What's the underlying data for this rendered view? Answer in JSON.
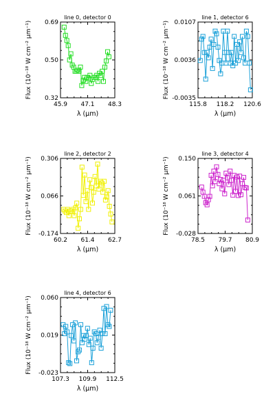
{
  "chart_data": [
    {
      "type": "line",
      "title": "line 0, detector 0",
      "xlabel": "λ (μm)",
      "ylabel": "Flux (10⁻¹⁸ W cm⁻² μm⁻¹)",
      "xticks": [
        "45.9",
        "47.1",
        "48.3"
      ],
      "yticks": [
        "0.32",
        "0.50",
        "0.69"
      ],
      "xlim": [
        45.9,
        48.3
      ],
      "ylim": [
        0.32,
        0.69
      ],
      "color": "#22dd22",
      "series": [
        {
          "x": [
            46.06,
            46.12,
            46.18,
            46.24,
            46.3,
            46.36,
            46.42,
            46.48,
            46.54,
            46.6,
            46.66,
            46.72,
            46.78,
            46.84,
            46.9,
            46.96,
            47.02,
            47.08,
            47.14,
            47.2,
            47.26,
            47.32,
            47.38,
            47.44,
            47.5,
            47.56,
            47.62,
            47.68,
            47.74,
            47.8,
            47.86,
            47.92,
            47.98,
            48.04
          ],
          "y": [
            0.665,
            0.625,
            0.6,
            0.575,
            0.505,
            0.535,
            0.48,
            0.47,
            0.45,
            0.45,
            0.455,
            0.45,
            0.47,
            0.38,
            0.405,
            0.42,
            0.4,
            0.42,
            0.415,
            0.43,
            0.39,
            0.41,
            0.42,
            0.42,
            0.43,
            0.4,
            0.44,
            0.43,
            0.45,
            0.4,
            0.47,
            0.5,
            0.545,
            0.52
          ]
        }
      ]
    },
    {
      "type": "line",
      "title": "line 1, detector 6",
      "xlabel": "λ (μm)",
      "ylabel": "Flux (10⁻¹⁸ W cm⁻² μm⁻¹)",
      "xticks": [
        "115.8",
        "118.2",
        "120.6"
      ],
      "yticks": [
        "-0.0035",
        "0.0036",
        "0.0107"
      ],
      "xlim": [
        115.8,
        120.6
      ],
      "ylim": [
        -0.0035,
        0.0107
      ],
      "color": "#1aa0d8",
      "series": [
        {
          "x": [
            116.0,
            116.12,
            116.24,
            116.36,
            116.48,
            116.6,
            116.72,
            116.84,
            116.96,
            117.08,
            117.2,
            117.32,
            117.44,
            117.56,
            117.68,
            117.8,
            117.92,
            118.04,
            118.16,
            118.28,
            118.4,
            118.52,
            118.64,
            118.76,
            118.88,
            119.0,
            119.12,
            119.24,
            119.36,
            119.48,
            119.6,
            119.72,
            119.84,
            119.96,
            120.08,
            120.2,
            120.32,
            120.44
          ],
          "y": [
            0.0035,
            0.0075,
            0.008,
            0.005,
            0.0,
            0.005,
            0.004,
            0.006,
            0.0075,
            0.002,
            0.0065,
            0.009,
            0.0085,
            0.006,
            0.0035,
            0.001,
            0.003,
            0.009,
            0.005,
            0.003,
            0.009,
            0.005,
            0.003,
            0.005,
            0.0025,
            0.008,
            0.003,
            0.0065,
            0.0035,
            0.007,
            0.005,
            0.008,
            0.004,
            0.003,
            0.009,
            0.008,
            0.003,
            -0.002
          ]
        }
      ]
    },
    {
      "type": "line",
      "title": "line 2, detector 2",
      "xlabel": "λ (μm)",
      "ylabel": "Flux (10⁻¹⁸ W cm⁻² μm⁻¹)",
      "xticks": [
        "60.2",
        "61.4",
        "62.7"
      ],
      "yticks": [
        "-0.174",
        "0.066",
        "0.306"
      ],
      "xlim": [
        60.2,
        62.7
      ],
      "ylim": [
        -0.174,
        0.306
      ],
      "color": "#f0f000",
      "series": [
        {
          "x": [
            60.35,
            60.41,
            60.47,
            60.53,
            60.59,
            60.65,
            60.71,
            60.77,
            60.83,
            60.89,
            60.95,
            61.01,
            61.07,
            61.13,
            61.19,
            61.25,
            61.31,
            61.37,
            61.43,
            61.49,
            61.55,
            61.61,
            61.67,
            61.73,
            61.79,
            61.85,
            61.91,
            61.97,
            62.03,
            62.09,
            62.15,
            62.21,
            62.27,
            62.33,
            62.39,
            62.45,
            62.51,
            62.57
          ],
          "y": [
            -0.02,
            -0.03,
            -0.04,
            -0.02,
            -0.06,
            -0.03,
            -0.03,
            -0.02,
            -0.06,
            -0.01,
            0.02,
            -0.14,
            -0.08,
            -0.02,
            0.25,
            0.07,
            0.2,
            0.03,
            0.1,
            -0.02,
            0.17,
            0.12,
            0.02,
            0.09,
            0.19,
            0.13,
            0.27,
            0.11,
            0.16,
            0.15,
            0.09,
            0.16,
            0.04,
            0.06,
            0.1,
            0.0,
            -0.05,
            -0.1
          ]
        }
      ]
    },
    {
      "type": "line",
      "title": "line 3, detector 4",
      "xlabel": "λ (μm)",
      "ylabel": "Flux (10⁻¹⁸ W cm⁻² μm⁻¹)",
      "xticks": [
        "78.5",
        "79.7",
        "80.9"
      ],
      "yticks": [
        "-0.028",
        "0.061",
        "0.150"
      ],
      "xlim": [
        78.5,
        80.9
      ],
      "ylim": [
        -0.028,
        0.15
      ],
      "color": "#cc22cc",
      "series": [
        {
          "x": [
            78.66,
            78.72,
            78.78,
            78.84,
            78.9,
            78.96,
            79.02,
            79.08,
            79.14,
            79.2,
            79.26,
            79.32,
            79.38,
            79.44,
            79.5,
            79.56,
            79.62,
            79.68,
            79.74,
            79.8,
            79.86,
            79.92,
            79.98,
            80.04,
            80.1,
            80.16,
            80.22,
            80.28,
            80.34,
            80.4,
            80.46,
            80.52,
            80.58,
            80.64,
            80.7
          ],
          "y": [
            0.082,
            0.07,
            0.06,
            0.045,
            0.04,
            0.052,
            0.06,
            0.11,
            0.085,
            0.12,
            0.095,
            0.13,
            0.112,
            0.09,
            0.1,
            0.078,
            0.098,
            0.066,
            0.115,
            0.104,
            0.088,
            0.12,
            0.098,
            0.063,
            0.11,
            0.072,
            0.106,
            0.062,
            0.108,
            0.064,
            0.09,
            0.105,
            0.081,
            0.08,
            0.004
          ]
        }
      ]
    },
    {
      "type": "line",
      "title": "line 4, detector 6",
      "xlabel": "λ (μm)",
      "ylabel": "Flux (10⁻¹⁸ W cm⁻² μm⁻¹)",
      "xticks": [
        "107.3",
        "109.9",
        "112.5"
      ],
      "yticks": [
        "-0.023",
        "0.019",
        "0.060"
      ],
      "xlim": [
        107.3,
        112.5
      ],
      "ylim": [
        -0.023,
        0.06
      ],
      "color": "#1aa0d8",
      "series": [
        {
          "x": [
            107.55,
            107.68,
            107.81,
            107.94,
            108.07,
            108.2,
            108.33,
            108.46,
            108.59,
            108.72,
            108.85,
            108.98,
            109.11,
            109.24,
            109.37,
            109.5,
            109.63,
            109.76,
            109.89,
            110.02,
            110.15,
            110.28,
            110.41,
            110.54,
            110.67,
            110.8,
            110.93,
            111.06,
            111.19,
            111.32,
            111.45,
            111.58,
            111.71,
            111.84,
            111.97,
            112.1
          ],
          "y": [
            0.03,
            0.02,
            0.028,
            0.022,
            -0.012,
            -0.013,
            0.018,
            0.03,
            0.012,
            0.032,
            -0.01,
            0.0,
            0.002,
            0.03,
            0.01,
            0.018,
            0.014,
            0.018,
            0.026,
            0.008,
            0.015,
            -0.012,
            0.004,
            0.022,
            0.02,
            0.01,
            0.016,
            0.024,
            0.004,
            0.02,
            0.048,
            0.02,
            0.05,
            0.03,
            0.028,
            0.046
          ]
        }
      ]
    }
  ]
}
